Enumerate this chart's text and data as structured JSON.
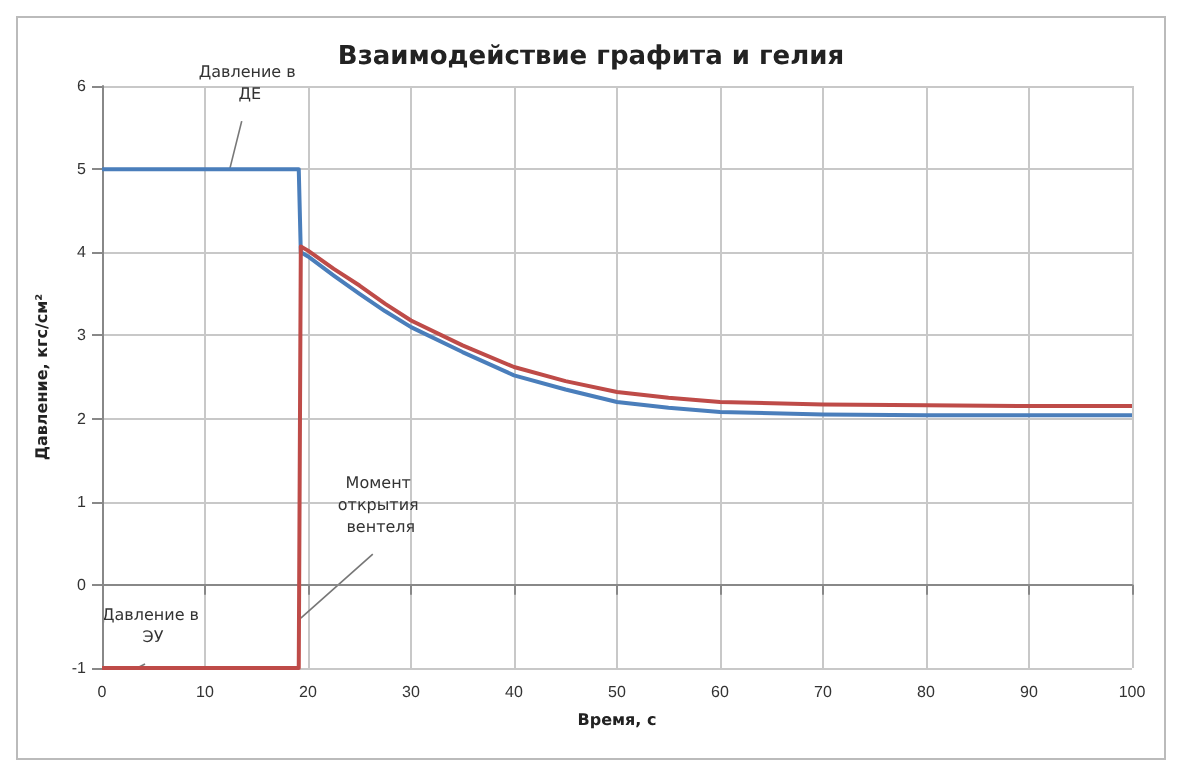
{
  "chart_data": {
    "type": "line",
    "title": "Взаимодействие графита и гелия",
    "xlabel": "Время, с",
    "ylabel": "Давление, кгс/см²",
    "xlim": [
      0,
      100
    ],
    "xticks": [
      0,
      10,
      20,
      30,
      40,
      50,
      60,
      70,
      80,
      90,
      100
    ],
    "ylim": [
      -1,
      6
    ],
    "yticks": [
      -1,
      0,
      1,
      2,
      3,
      4,
      5,
      6
    ],
    "grid": true,
    "marker": "none",
    "line_style": "solid",
    "series": [
      {
        "color": "#4a7ebb",
        "x": [
          0,
          5,
          10,
          15,
          19.1,
          19.3,
          20,
          22.5,
          25,
          27.5,
          30,
          35,
          40,
          45,
          50,
          55,
          60,
          70,
          80,
          90,
          100
        ],
        "values": [
          5,
          5,
          5,
          5,
          5,
          4,
          3.95,
          3.72,
          3.5,
          3.29,
          3.1,
          2.8,
          2.52,
          2.35,
          2.2,
          2.13,
          2.08,
          2.05,
          2.04,
          2.04,
          2.04
        ]
      },
      {
        "color": "#be4b48",
        "x": [
          0,
          5,
          10,
          15,
          19.1,
          19.3,
          20,
          22.5,
          25,
          27.5,
          30,
          35,
          40,
          45,
          50,
          55,
          60,
          70,
          80,
          90,
          100
        ],
        "values": [
          -1,
          -1,
          -1,
          -1,
          -1,
          4.07,
          4.02,
          3.8,
          3.6,
          3.38,
          3.18,
          2.88,
          2.62,
          2.45,
          2.32,
          2.25,
          2.2,
          2.17,
          2.16,
          2.15,
          2.15
        ]
      }
    ],
    "annotations": [
      {
        "text": "Давление в ДЕ",
        "x": 12.4,
        "y": 5
      },
      {
        "text": "Давление в ЭУ",
        "x": 3.4,
        "y": -1
      },
      {
        "text": "Момент открытия вентеля",
        "x": 19.3,
        "y": -0.4
      }
    ]
  }
}
